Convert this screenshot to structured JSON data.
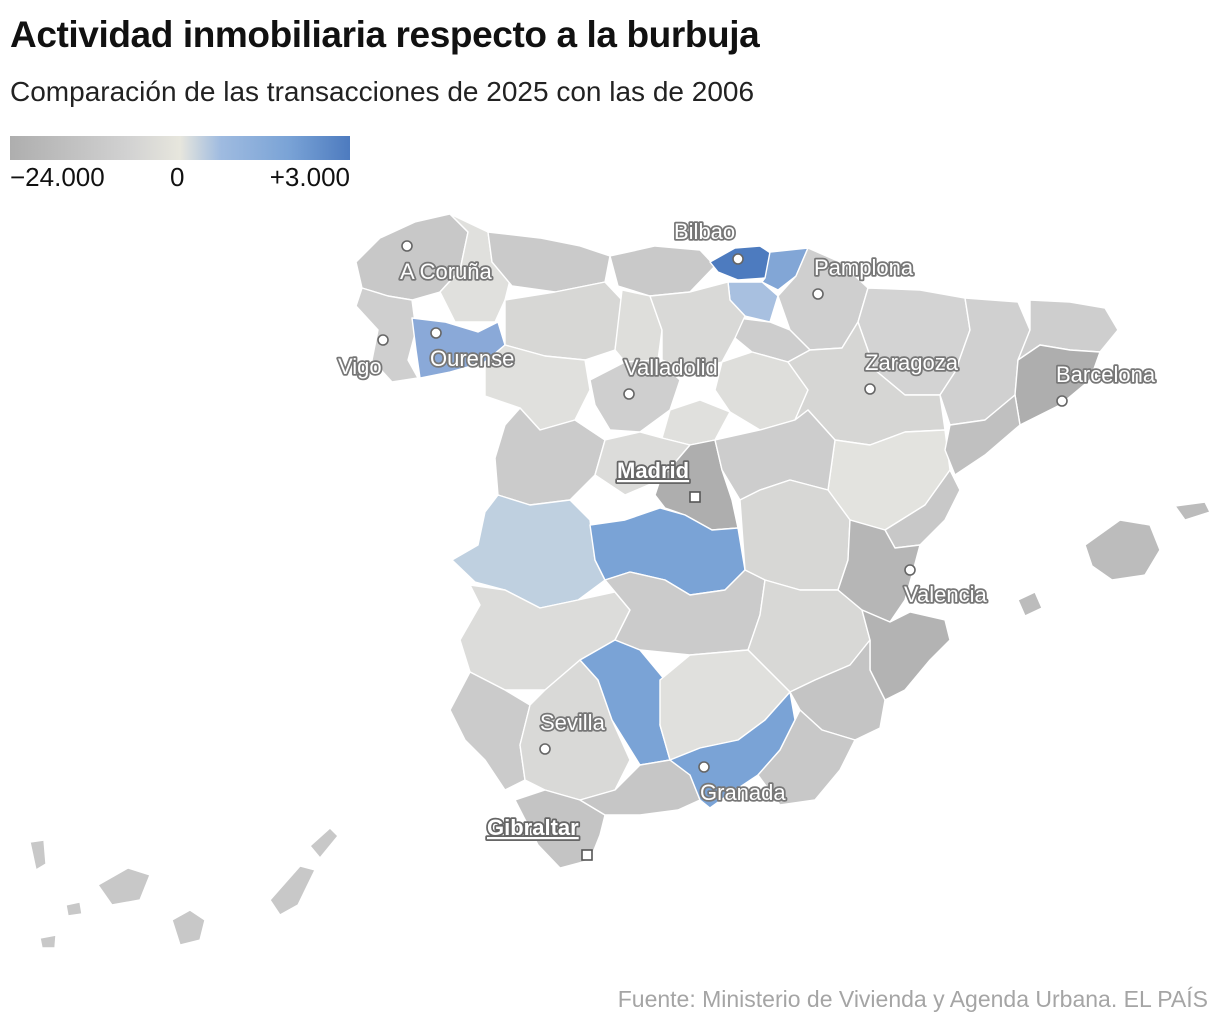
{
  "header": {
    "title": "Actividad inmobiliaria respecto a la burbuja",
    "subtitle": "Comparación de las transacciones de 2025 con las de 2006"
  },
  "legend": {
    "min_label": "−24.000",
    "zero_label": "0",
    "max_label": "+3.000",
    "min_value": -24000,
    "max_value": 3000,
    "colors": [
      "#aeaeae",
      "#d2d2d2",
      "#e7e6dd",
      "#9fbbe0",
      "#7aa3d6",
      "#4d7bbf"
    ]
  },
  "map": {
    "cities": [
      {
        "name": "A Coruña"
      },
      {
        "name": "Vigo"
      },
      {
        "name": "Ourense"
      },
      {
        "name": "Bilbao"
      },
      {
        "name": "Pamplona"
      },
      {
        "name": "Valladolid"
      },
      {
        "name": "Zaragoza"
      },
      {
        "name": "Barcelona"
      },
      {
        "name": "Valencia"
      },
      {
        "name": "Sevilla"
      },
      {
        "name": "Granada"
      }
    ],
    "capitals": [
      {
        "name": "Madrid"
      },
      {
        "name": "Gibraltar"
      }
    ]
  },
  "footer": {
    "source": "Fuente: Ministerio de Vivienda y Agenda Urbana. EL PAÍS"
  }
}
